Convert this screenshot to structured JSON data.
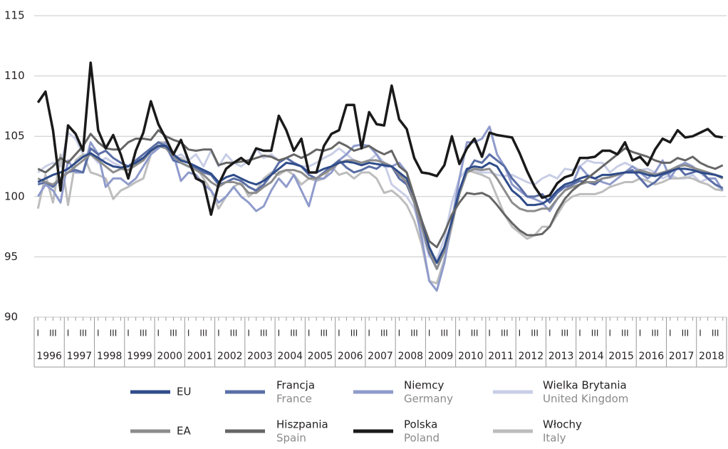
{
  "chart_data": {
    "type": "line",
    "ylim": [
      90,
      115
    ],
    "yticks": [
      90,
      95,
      100,
      105,
      110,
      115
    ],
    "grid": true,
    "categories": [
      "I",
      null,
      "III",
      null,
      "I",
      null,
      "III",
      null,
      "I",
      null,
      "III",
      null,
      "I",
      null,
      "III",
      null,
      "I",
      null,
      "III",
      null,
      "I",
      null,
      "III",
      null,
      "I",
      null,
      "III",
      null,
      "I",
      null,
      "III",
      null,
      "I",
      null,
      "III",
      null,
      "I",
      null,
      "III",
      null,
      "I",
      null,
      "III",
      null,
      "I",
      null,
      "III",
      null,
      "I",
      null,
      "III",
      null,
      "I",
      null,
      "III",
      null,
      "I",
      null,
      "III",
      null,
      "I",
      null,
      "III",
      null,
      "I",
      null,
      "III",
      null,
      "I",
      null,
      "III",
      null,
      "I",
      null,
      "III",
      null,
      "I",
      null,
      "III",
      null,
      "I",
      null,
      "III",
      null,
      "I",
      null,
      "III",
      null,
      "I",
      null,
      "III",
      null
    ],
    "years": [
      "1996",
      "1997",
      "1998",
      "1999",
      "2000",
      "2001",
      "2002",
      "2003",
      "2004",
      "2005",
      "2006",
      "2007",
      "2008",
      "2009",
      "2010",
      "2011",
      "2012",
      "2013",
      "2014",
      "2015",
      "2016",
      "2017",
      "2018"
    ],
    "series": [
      {
        "name": "Wielka Brytania",
        "name_en": "United Kingdom",
        "color": "#c9cee6",
        "values": [
          102.0,
          102.5,
          102.8,
          102.5,
          105.3,
          104.8,
          103.5,
          103.5,
          102.8,
          103.2,
          102.8,
          102.5,
          102.2,
          102.8,
          103.5,
          104.0,
          104.5,
          104.0,
          103.2,
          103.5,
          103.0,
          103.5,
          102.5,
          103.8,
          102.5,
          103.5,
          102.8,
          102.5,
          103.0,
          104.0,
          103.2,
          103.5,
          103.0,
          103.2,
          102.8,
          102.5,
          102.5,
          102.8,
          103.2,
          103.5,
          104.0,
          103.5,
          103.0,
          102.8,
          103.0,
          103.5,
          102.8,
          101.0,
          100.5,
          100.0,
          99.0,
          97.0,
          95.0,
          94.8,
          96.5,
          99.5,
          101.5,
          102.3,
          102.2,
          102.0,
          102.0,
          101.8,
          101.7,
          101.8,
          101.5,
          101.2,
          101.0,
          101.5,
          101.8,
          101.5,
          102.3,
          102.2,
          102.5,
          103.0,
          102.8,
          102.8,
          102.0,
          102.5,
          102.8,
          102.5,
          102.2,
          102.3,
          102.0,
          101.5,
          101.8,
          101.5,
          101.5,
          101.8,
          101.2,
          101.5,
          101.0,
          100.5
        ]
      },
      {
        "name": "Włochy",
        "name_en": "Italy",
        "color": "#bdbdbd",
        "values": [
          99.0,
          101.8,
          99.5,
          103.5,
          99.3,
          103.0,
          103.5,
          102.0,
          101.8,
          101.5,
          99.8,
          100.5,
          100.8,
          101.2,
          101.5,
          103.5,
          104.5,
          104.5,
          103.2,
          103.2,
          102.8,
          102.5,
          101.5,
          100.5,
          99.0,
          100.0,
          100.8,
          101.2,
          100.0,
          100.5,
          101.5,
          102.0,
          101.8,
          102.2,
          101.8,
          101.0,
          101.5,
          101.3,
          101.5,
          102.5,
          101.8,
          102.0,
          101.5,
          102.0,
          102.0,
          101.5,
          100.3,
          100.5,
          100.0,
          99.3,
          98.0,
          96.0,
          93.0,
          92.8,
          94.8,
          97.5,
          100.5,
          102.2,
          102.0,
          101.8,
          101.5,
          100.0,
          98.5,
          97.5,
          97.0,
          96.5,
          96.8,
          97.5,
          97.5,
          98.5,
          99.5,
          100.0,
          100.2,
          100.2,
          100.2,
          100.4,
          100.8,
          101.0,
          101.2,
          101.2,
          101.5,
          101.3,
          101.0,
          101.2,
          101.5,
          101.5,
          101.6,
          101.5,
          101.2,
          101.0,
          100.6,
          100.5
        ]
      },
      {
        "name": "Niemcy",
        "name_en": "Germany",
        "color": "#8f9bcb",
        "values": [
          100.0,
          101.0,
          100.5,
          99.5,
          103.0,
          102.0,
          102.0,
          104.5,
          103.5,
          100.8,
          101.5,
          101.5,
          101.0,
          101.5,
          102.5,
          103.5,
          104.0,
          104.5,
          103.5,
          101.3,
          102.0,
          101.8,
          101.0,
          100.5,
          99.5,
          100.0,
          100.8,
          100.0,
          99.5,
          98.8,
          99.2,
          100.5,
          101.5,
          100.8,
          101.8,
          100.5,
          99.2,
          101.5,
          101.5,
          102.0,
          103.0,
          103.5,
          104.2,
          104.3,
          104.2,
          103.5,
          102.5,
          102.5,
          102.8,
          102.0,
          99.5,
          96.5,
          93.0,
          92.2,
          94.5,
          98.0,
          101.5,
          104.5,
          104.5,
          104.8,
          105.8,
          103.5,
          102.5,
          101.0,
          100.5,
          100.0,
          99.8,
          99.5,
          98.8,
          99.8,
          100.5,
          101.0,
          102.5,
          101.8,
          101.5,
          101.2,
          101.0,
          101.5,
          102.0,
          102.5,
          102.0,
          101.5,
          102.0,
          103.0,
          101.5,
          102.5,
          102.8,
          102.5,
          102.0,
          101.5,
          101.5,
          100.5
        ]
      },
      {
        "name": "Francja",
        "name_en": "France",
        "color": "#5a6ea6",
        "values": [
          101.0,
          101.2,
          100.8,
          101.5,
          102.0,
          102.2,
          102.0,
          104.0,
          103.5,
          103.8,
          103.2,
          102.8,
          102.5,
          103.0,
          103.5,
          104.0,
          104.5,
          104.2,
          103.0,
          102.8,
          102.5,
          102.4,
          102.0,
          101.8,
          101.0,
          101.2,
          101.5,
          101.3,
          100.8,
          100.5,
          101.0,
          101.8,
          102.8,
          103.2,
          102.8,
          102.5,
          101.8,
          101.5,
          102.0,
          102.5,
          103.0,
          102.4,
          102.0,
          102.2,
          102.5,
          102.3,
          102.8,
          102.5,
          101.5,
          101.0,
          99.5,
          97.5,
          95.3,
          94.0,
          95.5,
          97.8,
          100.5,
          102.0,
          103.0,
          102.8,
          103.5,
          103.0,
          102.5,
          101.5,
          100.8,
          100.0,
          100.0,
          100.2,
          99.5,
          100.3,
          100.8,
          101.0,
          101.3,
          101.2,
          101.0,
          101.5,
          101.6,
          101.8,
          102.0,
          102.2,
          101.5,
          100.8,
          101.2,
          101.8,
          102.0,
          102.5,
          101.8,
          102.0,
          102.2,
          101.5,
          101.0,
          100.7
        ]
      },
      {
        "name": "EA",
        "color": "#8c8c8c",
        "values": [
          101.5,
          101.2,
          101.0,
          101.5,
          102.0,
          102.5,
          103.0,
          103.5,
          103.0,
          102.5,
          102.0,
          102.3,
          102.2,
          102.6,
          103.0,
          103.8,
          104.2,
          104.0,
          103.4,
          102.8,
          102.5,
          102.2,
          101.8,
          101.2,
          100.8,
          101.2,
          101.2,
          101.0,
          100.3,
          100.3,
          100.8,
          101.2,
          102.0,
          102.2,
          102.2,
          102.0,
          101.5,
          101.5,
          101.9,
          102.3,
          102.8,
          103.0,
          103.0,
          102.8,
          103.0,
          103.0,
          102.8,
          102.5,
          101.8,
          101.2,
          99.5,
          97.5,
          95.5,
          94.0,
          95.5,
          97.8,
          100.2,
          102.0,
          102.3,
          102.2,
          102.3,
          101.5,
          100.5,
          99.5,
          99.0,
          98.8,
          98.8,
          99.0,
          99.0,
          99.8,
          100.5,
          100.8,
          101.0,
          101.2,
          101.2,
          101.5,
          101.6,
          101.8,
          102.0,
          102.0,
          102.2,
          102.0,
          101.8,
          102.0,
          102.2,
          102.5,
          102.6,
          102.4,
          102.2,
          102.0,
          101.8,
          101.5
        ]
      },
      {
        "name": "EU",
        "color": "#2f4c89",
        "values": [
          101.2,
          101.5,
          101.8,
          102.0,
          102.3,
          102.8,
          103.3,
          103.6,
          103.2,
          102.8,
          102.5,
          102.4,
          102.5,
          102.8,
          103.2,
          103.8,
          104.2,
          104.2,
          103.5,
          103.0,
          102.8,
          102.5,
          102.2,
          101.9,
          101.2,
          101.6,
          101.8,
          101.5,
          101.2,
          101.0,
          101.3,
          101.8,
          102.3,
          102.8,
          102.7,
          102.5,
          102.0,
          102.0,
          102.3,
          102.5,
          102.8,
          102.9,
          102.8,
          102.6,
          102.8,
          102.7,
          102.6,
          102.5,
          102.0,
          101.5,
          100.0,
          98.0,
          95.8,
          94.5,
          95.8,
          98.0,
          100.5,
          102.3,
          102.5,
          102.4,
          102.8,
          102.5,
          101.5,
          100.5,
          100.0,
          99.3,
          99.3,
          99.4,
          99.8,
          100.5,
          101.0,
          101.2,
          101.5,
          101.7,
          101.5,
          101.8,
          101.8,
          101.9,
          102.0,
          102.0,
          102.0,
          101.8,
          101.7,
          101.9,
          102.1,
          102.3,
          102.3,
          102.2,
          102.0,
          101.9,
          101.8,
          101.6
        ]
      },
      {
        "name": "Hiszpania",
        "name_en": "Spain",
        "color": "#666666",
        "values": [
          102.3,
          102.0,
          102.5,
          103.2,
          102.8,
          103.5,
          104.2,
          105.2,
          104.5,
          104.0,
          103.9,
          103.9,
          104.5,
          104.8,
          104.8,
          104.7,
          105.5,
          105.0,
          104.7,
          104.5,
          103.9,
          103.8,
          103.9,
          103.9,
          102.6,
          102.8,
          102.8,
          102.9,
          103.0,
          103.2,
          103.4,
          103.3,
          103.0,
          103.2,
          103.5,
          103.2,
          103.5,
          103.9,
          103.8,
          104.0,
          104.5,
          104.2,
          103.8,
          104.0,
          104.2,
          103.8,
          103.5,
          103.8,
          102.5,
          102.0,
          100.0,
          98.0,
          96.3,
          95.8,
          97.0,
          98.5,
          99.5,
          100.3,
          100.2,
          100.3,
          100.0,
          99.3,
          98.5,
          97.8,
          97.2,
          96.8,
          96.8,
          96.9,
          97.5,
          98.8,
          99.8,
          100.5,
          101.0,
          101.5,
          102.0,
          102.5,
          103.0,
          103.5,
          104.0,
          103.7,
          103.5,
          103.3,
          103.0,
          102.8,
          102.8,
          103.2,
          103.0,
          103.3,
          102.8,
          102.5,
          102.3,
          102.6
        ]
      },
      {
        "name": "Polska",
        "name_en": "Poland",
        "color": "#1a1a1a",
        "values": [
          107.8,
          108.7,
          105.5,
          100.5,
          105.9,
          105.2,
          103.8,
          111.1,
          105.5,
          104.0,
          105.1,
          103.5,
          101.5,
          103.8,
          105.3,
          107.9,
          106.0,
          104.8,
          103.5,
          104.7,
          103.0,
          101.5,
          101.2,
          98.5,
          101.0,
          102.3,
          102.8,
          103.2,
          102.7,
          104.0,
          103.8,
          103.8,
          106.7,
          105.5,
          103.8,
          104.8,
          102.0,
          102.0,
          104.2,
          105.2,
          105.5,
          107.6,
          107.6,
          104.0,
          107.0,
          106.0,
          105.9,
          109.2,
          106.4,
          105.6,
          103.2,
          102.0,
          101.9,
          101.7,
          102.6,
          105.0,
          102.7,
          104.0,
          104.8,
          103.3,
          105.3,
          105.1,
          105.0,
          104.9,
          103.6,
          102.1,
          100.8,
          99.9,
          100.1,
          101.1,
          101.6,
          101.8,
          103.2,
          103.2,
          103.3,
          103.8,
          103.8,
          103.5,
          104.5,
          103.0,
          103.3,
          102.6,
          103.9,
          104.8,
          104.5,
          105.5,
          104.9,
          105.0,
          105.3,
          105.6,
          105.0,
          104.9
        ]
      }
    ]
  }
}
